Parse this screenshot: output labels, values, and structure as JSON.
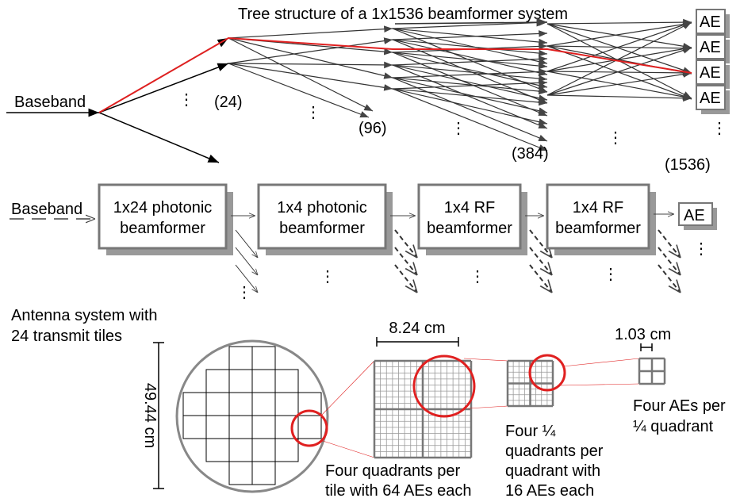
{
  "title": "Tree structure of a 1x1536 beamformer system",
  "tree": {
    "input": "Baseband",
    "counts": [
      "(24)",
      "(96)",
      "(384)",
      "(1536)"
    ],
    "elements": [
      "AE",
      "AE",
      "AE",
      "AE"
    ]
  },
  "ellipsis": "⋮",
  "chain": {
    "input": "Baseband",
    "blocks": [
      [
        "1x24 photonic",
        "beamformer"
      ],
      [
        "1x4 photonic",
        "beamformer"
      ],
      [
        "1x4 RF",
        "beamformer"
      ],
      [
        "1x4 RF",
        "beamformer"
      ]
    ],
    "element": "AE"
  },
  "antenna": {
    "caption": [
      "Antenna system with",
      "24 transmit tiles"
    ],
    "diameter": "49.44 cm",
    "tile_width": "8.24 cm",
    "element_width": "1.03 cm",
    "tile_caption": [
      "Four quadrants per",
      "tile with 64 AEs each"
    ],
    "quadrant_caption": [
      "Four ¼",
      "quadrants per",
      "quadrant with",
      "16 AEs each"
    ],
    "subquadrant_caption": [
      "Four AEs per",
      "¼ quadrant"
    ]
  }
}
